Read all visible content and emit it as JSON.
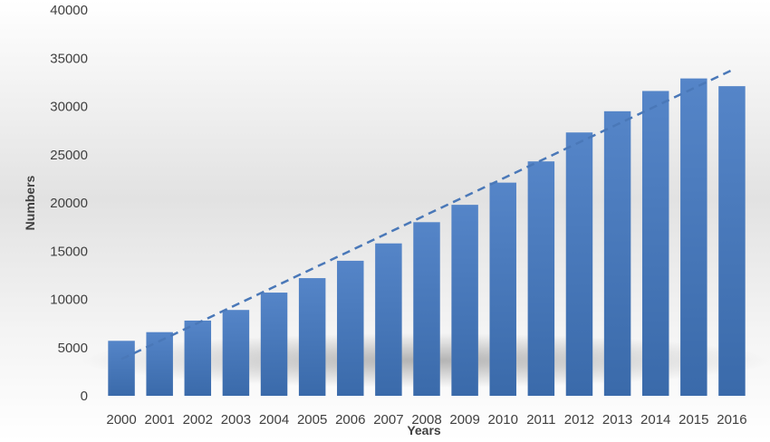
{
  "chart_data": {
    "type": "bar",
    "title": "",
    "xlabel": "Years",
    "ylabel": "Numbers",
    "categories": [
      "2000",
      "2001",
      "2002",
      "2003",
      "2004",
      "2005",
      "2006",
      "2007",
      "2008",
      "2009",
      "2010",
      "2011",
      "2012",
      "2013",
      "2014",
      "2015",
      "2016"
    ],
    "series": [
      {
        "values": [
          5700,
          6600,
          7800,
          8900,
          10700,
          12200,
          14000,
          15800,
          18000,
          19800,
          22100,
          24300,
          27300,
          29500,
          31600,
          32900,
          32100
        ]
      }
    ],
    "trendline": {
      "type": "linear",
      "style": "dashed"
    },
    "ylim": [
      0,
      40000
    ],
    "yticks": [
      "0",
      "5000",
      "10000",
      "15000",
      "20000",
      "25000",
      "30000",
      "35000",
      "40000"
    ],
    "grid": false,
    "legend": "none",
    "colors": {
      "bar_top": "#5585c8",
      "bar_bottom": "#3a6aaa",
      "trendline": "#4a78b8",
      "text": "#404040"
    }
  }
}
